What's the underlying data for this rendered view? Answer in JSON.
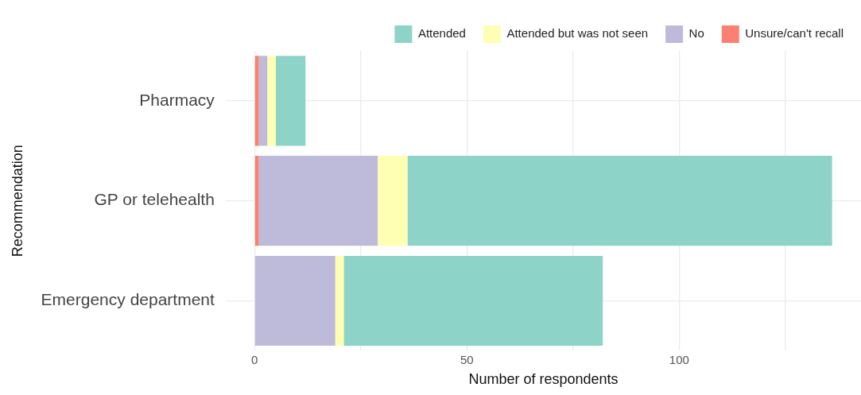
{
  "chart_data": {
    "type": "bar",
    "orientation": "horizontal",
    "stacked": true,
    "xlabel": "Number of respondents",
    "ylabel": "Recommendation",
    "categories": [
      "Pharmacy",
      "GP or telehealth",
      "Emergency department"
    ],
    "series": [
      {
        "name": "Unsure/can't recall",
        "color": "#fb8072",
        "values": [
          1,
          1,
          0
        ]
      },
      {
        "name": "No",
        "color": "#bebada",
        "values": [
          2,
          28,
          19
        ]
      },
      {
        "name": "Attended but was not seen",
        "color": "#ffffb3",
        "values": [
          2,
          7,
          2
        ]
      },
      {
        "name": "Attended",
        "color": "#8dd3c7",
        "values": [
          7,
          100,
          61
        ]
      }
    ],
    "xlim": [
      -6.8,
      142.8
    ],
    "xticks": [
      0,
      {
        "value": 25,
        "label": null
      },
      50,
      {
        "value": 75,
        "label": null
      },
      100,
      {
        "value": 125,
        "label": null
      }
    ],
    "grid": true,
    "legend": "top right"
  }
}
